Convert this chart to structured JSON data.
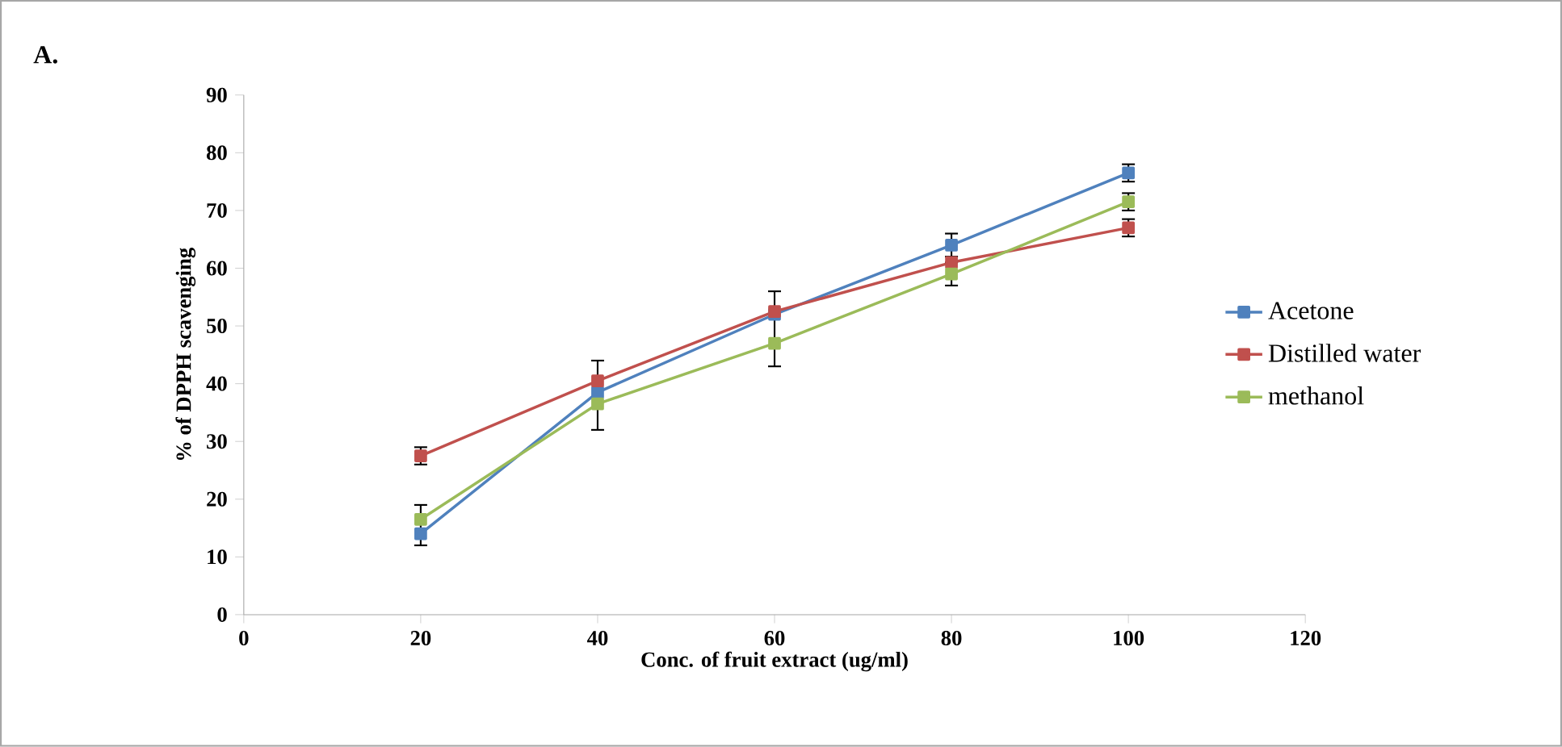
{
  "chart_data": {
    "type": "line",
    "title": "A.",
    "xlabel": "Conc. of fruit extract (ug/ml)",
    "ylabel": "% of DPPH scavenging",
    "x": [
      20,
      40,
      60,
      80,
      100
    ],
    "series": [
      {
        "name": "Acetone",
        "color": "#4f81bd",
        "values": [
          14,
          38.5,
          52,
          64,
          76.5
        ],
        "errors": [
          null,
          null,
          null,
          [
            62,
            66
          ],
          1.5
        ]
      },
      {
        "name": "Distilled water",
        "color": "#c0504d",
        "values": [
          27.5,
          40.5,
          52.5,
          61,
          67
        ],
        "errors": [
          1.5,
          null,
          null,
          null,
          1.5
        ]
      },
      {
        "name": "methanol",
        "color": "#9bbb59",
        "values": [
          16.5,
          36.5,
          47,
          59,
          71.5
        ],
        "errors": [
          [
            12,
            19
          ],
          [
            32,
            44
          ],
          [
            43,
            56
          ],
          [
            57,
            61
          ],
          1.5
        ]
      }
    ],
    "xlim": [
      0,
      120
    ],
    "xticks": [
      0,
      20,
      40,
      60,
      80,
      100,
      120
    ],
    "ylim": [
      0,
      90
    ],
    "yticks": [
      0,
      10,
      20,
      30,
      40,
      50,
      60,
      70,
      80,
      90
    ],
    "grid": false,
    "legend": "right",
    "marker": "square",
    "line_style": "solid"
  }
}
